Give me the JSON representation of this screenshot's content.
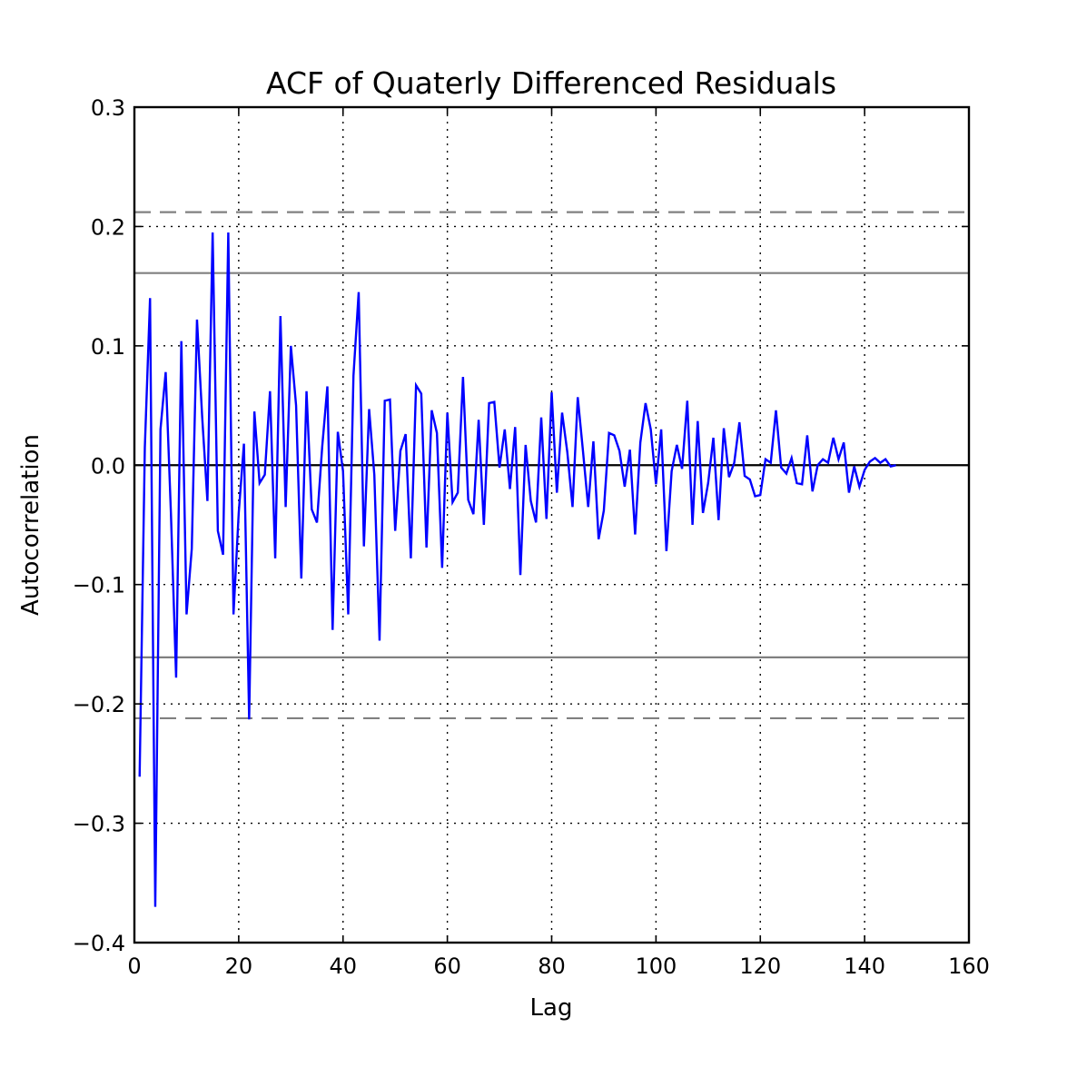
{
  "chart_data": {
    "type": "line",
    "title": "ACF of Quaterly Differenced Residuals",
    "xlabel": "Lag",
    "ylabel": "Autocorrelation",
    "xlim": [
      0,
      160
    ],
    "ylim": [
      -0.4,
      0.3
    ],
    "grid": true,
    "legend": "none",
    "x_ticks": [
      0,
      20,
      40,
      60,
      80,
      100,
      120,
      140,
      160
    ],
    "x_tick_labels": [
      "0",
      "20",
      "40",
      "60",
      "80",
      "100",
      "120",
      "140",
      "160"
    ],
    "y_ticks": [
      -0.4,
      -0.3,
      -0.2,
      -0.1,
      0.0,
      0.1,
      0.2,
      0.3
    ],
    "y_tick_labels": [
      "−0.4",
      "−0.3",
      "−0.2",
      "−0.1",
      "0.0",
      "0.1",
      "0.2",
      "0.3"
    ],
    "reference_lines": [
      {
        "y": 0.0,
        "style": "solid",
        "color": "#000000"
      },
      {
        "y": 0.161,
        "style": "solid",
        "color": "#808080"
      },
      {
        "y": -0.161,
        "style": "solid",
        "color": "#808080"
      },
      {
        "y": 0.212,
        "style": "dashed",
        "color": "#808080"
      },
      {
        "y": -0.212,
        "style": "dashed",
        "color": "#808080"
      }
    ],
    "series": [
      {
        "color": "#0000ff",
        "values": [
          -0.261,
          0.015,
          0.14,
          -0.37,
          0.03,
          0.078,
          -0.04,
          -0.178,
          0.104,
          -0.125,
          -0.07,
          0.122,
          0.04,
          -0.03,
          0.195,
          -0.055,
          -0.075,
          0.195,
          -0.125,
          -0.04,
          0.018,
          -0.213,
          0.045,
          -0.015,
          -0.008,
          0.062,
          -0.078,
          0.125,
          -0.035,
          0.1,
          0.05,
          -0.095,
          0.062,
          -0.037,
          -0.048,
          0.015,
          0.066,
          -0.138,
          0.028,
          -0.005,
          -0.125,
          0.075,
          0.145,
          -0.068,
          0.047,
          -0.008,
          -0.147,
          0.054,
          0.055,
          -0.055,
          0.012,
          0.026,
          -0.078,
          0.067,
          0.06,
          -0.069,
          0.046,
          0.027,
          -0.086,
          0.044,
          -0.031,
          -0.023,
          0.074,
          -0.029,
          -0.041,
          0.038,
          -0.05,
          0.052,
          0.053,
          -0.002,
          0.03,
          -0.02,
          0.032,
          -0.092,
          0.017,
          -0.03,
          -0.048,
          0.04,
          -0.045,
          0.061,
          -0.023,
          0.044,
          0.011,
          -0.035,
          0.057,
          0.012,
          -0.035,
          0.02,
          -0.062,
          -0.038,
          0.027,
          0.025,
          0.012,
          -0.018,
          0.013,
          -0.058,
          0.019,
          0.052,
          0.03,
          -0.016,
          0.03,
          -0.072,
          -0.005,
          0.017,
          -0.003,
          0.054,
          -0.05,
          0.037,
          -0.04,
          -0.015,
          0.023,
          -0.046,
          0.031,
          -0.01,
          0.002,
          0.036,
          -0.009,
          -0.012,
          -0.026,
          -0.025,
          0.005,
          0.002,
          0.046,
          -0.002,
          -0.007,
          0.006,
          -0.015,
          -0.016,
          0.025,
          -0.022,
          0.0,
          0.005,
          0.002,
          0.023,
          0.005,
          0.019,
          -0.023,
          -0.001,
          -0.018,
          -0.004,
          0.003,
          0.006,
          0.002,
          0.005,
          -0.001,
          0.0
        ]
      }
    ]
  }
}
